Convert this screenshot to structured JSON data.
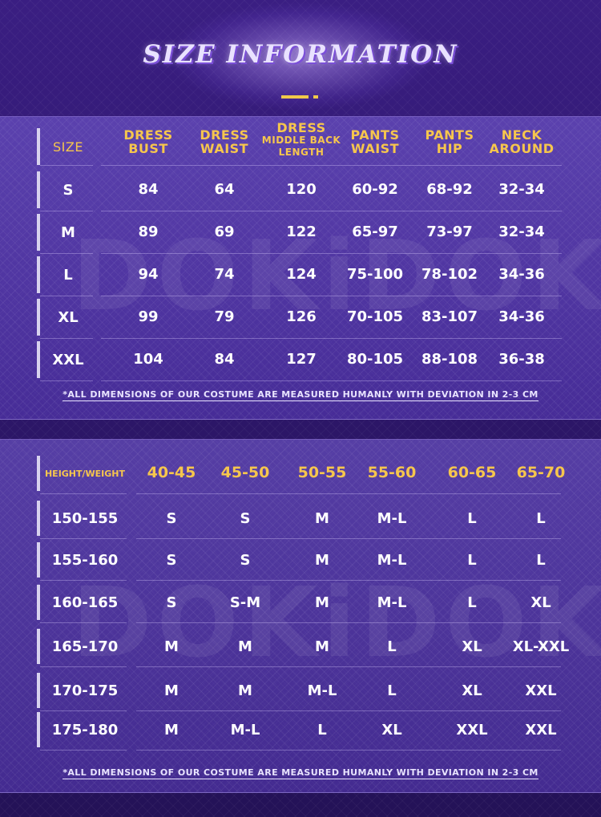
{
  "title": "SIZE INFORMATION",
  "watermark": "DOKiDOKi",
  "size_table": {
    "size_header": "SIZE",
    "columns": [
      {
        "line1": "DRESS",
        "line2": "BUST"
      },
      {
        "line1": "DRESS",
        "line2": "WAIST"
      },
      {
        "line1": "DRESS",
        "line2": "MIDDLE BACK",
        "line3": "LENGTH"
      },
      {
        "line1": "PANTS",
        "line2": "WAIST"
      },
      {
        "line1": "PANTS",
        "line2": "HIP"
      },
      {
        "line1": "NECK",
        "line2": "AROUND"
      }
    ],
    "rows": [
      {
        "size": "S",
        "values": [
          "84",
          "64",
          "120",
          "60-92",
          "68-92",
          "32-34"
        ]
      },
      {
        "size": "M",
        "values": [
          "89",
          "69",
          "122",
          "65-97",
          "73-97",
          "32-34"
        ]
      },
      {
        "size": "L",
        "values": [
          "94",
          "74",
          "124",
          "75-100",
          "78-102",
          "34-36"
        ]
      },
      {
        "size": "XL",
        "values": [
          "99",
          "79",
          "126",
          "70-105",
          "83-107",
          "34-36"
        ]
      },
      {
        "size": "XXL",
        "values": [
          "104",
          "84",
          "127",
          "80-105",
          "88-108",
          "36-38"
        ]
      }
    ],
    "note": "*ALL DIMENSIONS OF OUR COSTUME ARE MEASURED HUMANLY WITH DEVIATION IN 2-3 CM"
  },
  "hw_table": {
    "corner_header": "HEIGHT/WEIGHT",
    "weights": [
      "40-45",
      "45-50",
      "50-55",
      "55-60",
      "60-65",
      "65-70"
    ],
    "rows": [
      {
        "height": "150-155",
        "sizes": [
          "S",
          "S",
          "M",
          "M-L",
          "L",
          "L"
        ]
      },
      {
        "height": "155-160",
        "sizes": [
          "S",
          "S",
          "M",
          "M-L",
          "L",
          "L"
        ]
      },
      {
        "height": "160-165",
        "sizes": [
          "S",
          "S-M",
          "M",
          "M-L",
          "L",
          "XL"
        ]
      },
      {
        "height": "165-170",
        "sizes": [
          "M",
          "M",
          "M",
          "L",
          "XL",
          "XL-XXL"
        ]
      },
      {
        "height": "170-175",
        "sizes": [
          "M",
          "M",
          "M-L",
          "L",
          "XL",
          "XXL"
        ]
      },
      {
        "height": "175-180",
        "sizes": [
          "M",
          "M-L",
          "L",
          "XL",
          "XXL",
          "XXL"
        ]
      }
    ],
    "note": "*ALL DIMENSIONS OF OUR COSTUME ARE MEASURED HUMANLY WITH DEVIATION IN 2-3 CM"
  }
}
